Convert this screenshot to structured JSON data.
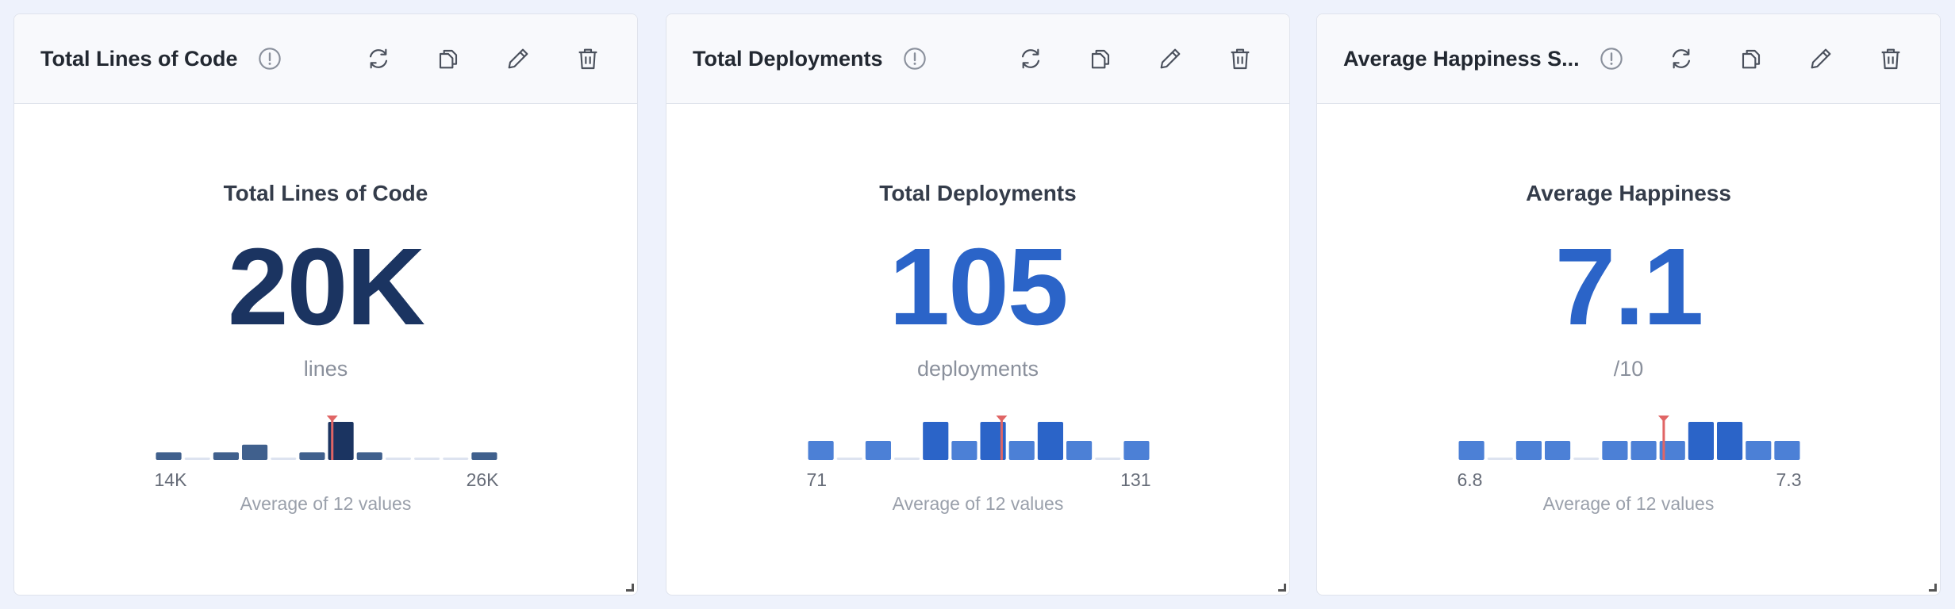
{
  "widgets": [
    {
      "header_title": "Total Lines of Code",
      "title": "Total Lines of Code",
      "value": 20200,
      "value_label": "20K",
      "unit": "lines",
      "color": "#1b3461",
      "bar_color": "#40608d",
      "peak_color": "#1b3461",
      "xlim": [
        14000,
        26000
      ],
      "xticks": [
        {
          "value": 14000,
          "label": "14K"
        },
        {
          "value": 26000,
          "label": "26K"
        }
      ],
      "counts": [
        1,
        0,
        1,
        2,
        0,
        1,
        5,
        1,
        0,
        0,
        0,
        1
      ],
      "footer": "Average of 12 values"
    },
    {
      "header_title": "Total Deployments",
      "title": "Total Deployments",
      "value": 105,
      "unit": "deployments",
      "color": "#2b64c8",
      "bar_color": "#4c80d6",
      "peak_color": "#2b64c8",
      "xlim": [
        71,
        131
      ],
      "xticks": [
        71,
        131
      ],
      "counts": [
        1,
        0,
        1,
        0,
        2,
        1,
        2,
        1,
        2,
        1,
        0,
        1
      ],
      "footer": "Average of 12 values"
    },
    {
      "header_title": "Average Happiness S...",
      "title": "Average Happiness",
      "value": 7.1,
      "unit": "/10",
      "color": "#2b64c8",
      "bar_color": "#4c80d6",
      "peak_color": "#2b64c8",
      "xlim": [
        6.8,
        7.3
      ],
      "xticks": [
        6.8,
        7.3
      ],
      "counts": [
        1,
        0,
        1,
        1,
        0,
        1,
        1,
        1,
        2,
        2,
        1,
        1
      ],
      "footer": "Average of 12 values"
    }
  ]
}
